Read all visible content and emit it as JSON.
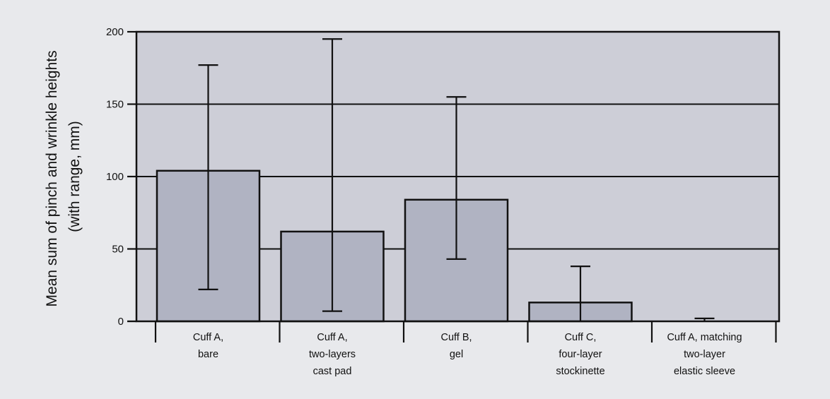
{
  "chart_data": {
    "type": "bar",
    "title": "",
    "ylabel_lines": [
      "Mean sum of pinch and wrinkle heights",
      "(with range, mm)"
    ],
    "xlabel": "",
    "ylim": [
      0,
      200
    ],
    "yticks": [
      "0",
      "50",
      "100",
      "150",
      "200"
    ],
    "grid": "horizontal",
    "categories": [
      [
        "Cuff A,",
        "bare"
      ],
      [
        "Cuff A,",
        "two-layers",
        "cast pad"
      ],
      [
        "Cuff B,",
        "gel"
      ],
      [
        "Cuff C,",
        "four-layer",
        "stockinette"
      ],
      [
        "Cuff A, matching",
        "two-layer",
        "elastic sleeve"
      ]
    ],
    "values": [
      104,
      62,
      84,
      13,
      0
    ],
    "range_min": [
      22,
      7,
      43,
      0,
      0
    ],
    "range_max": [
      177,
      195,
      155,
      38,
      2
    ]
  },
  "colors": {
    "background": "#e8e9ec",
    "plot_area": "#cdced7",
    "bar_fill": "#b0b3c2",
    "stroke": "#111111"
  }
}
